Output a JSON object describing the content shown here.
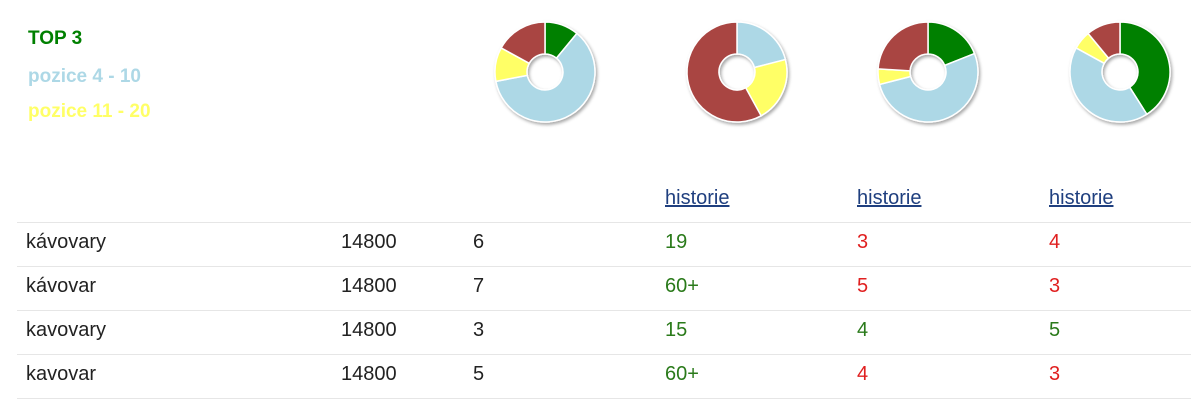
{
  "legend": [
    {
      "label": "TOP 3",
      "color": "#008000"
    },
    {
      "label": "pozice 4 - 10",
      "color": "#add8e6"
    },
    {
      "label": "pozice 11 - 20",
      "color": "#ffff66"
    }
  ],
  "segment_colors": [
    "#008000",
    "#add8e6",
    "#ffff66",
    "#a94442"
  ],
  "donuts": [
    {
      "type": "pie",
      "values": [
        11,
        61,
        11,
        17
      ]
    },
    {
      "type": "pie",
      "values": [
        0,
        21,
        21,
        58
      ]
    },
    {
      "type": "pie",
      "values": [
        19,
        52,
        5,
        24
      ]
    },
    {
      "type": "pie",
      "values": [
        41,
        42,
        6,
        11
      ]
    }
  ],
  "table": {
    "header": [
      "historie",
      "historie",
      "historie"
    ],
    "rows": [
      {
        "keyword": "kávovary",
        "volume": 14800,
        "position": 6,
        "cells": [
          {
            "text": "19",
            "color": "#2a7a1a"
          },
          {
            "text": "3",
            "color": "#e02020"
          },
          {
            "text": "4",
            "color": "#e02020"
          }
        ]
      },
      {
        "keyword": "kávovar",
        "volume": 14800,
        "position": 7,
        "cells": [
          {
            "text": "60+",
            "color": "#2a7a1a"
          },
          {
            "text": "5",
            "color": "#e02020"
          },
          {
            "text": "3",
            "color": "#e02020"
          }
        ]
      },
      {
        "keyword": "kavovary",
        "volume": 14800,
        "position": 3,
        "cells": [
          {
            "text": "15",
            "color": "#2a7a1a"
          },
          {
            "text": "4",
            "color": "#2a7a1a"
          },
          {
            "text": "5",
            "color": "#2a7a1a"
          }
        ]
      },
      {
        "keyword": "kavovar",
        "volume": 14800,
        "position": 5,
        "cells": [
          {
            "text": "60+",
            "color": "#2a7a1a"
          },
          {
            "text": "4",
            "color": "#e02020"
          },
          {
            "text": "3",
            "color": "#e02020"
          }
        ]
      }
    ]
  }
}
